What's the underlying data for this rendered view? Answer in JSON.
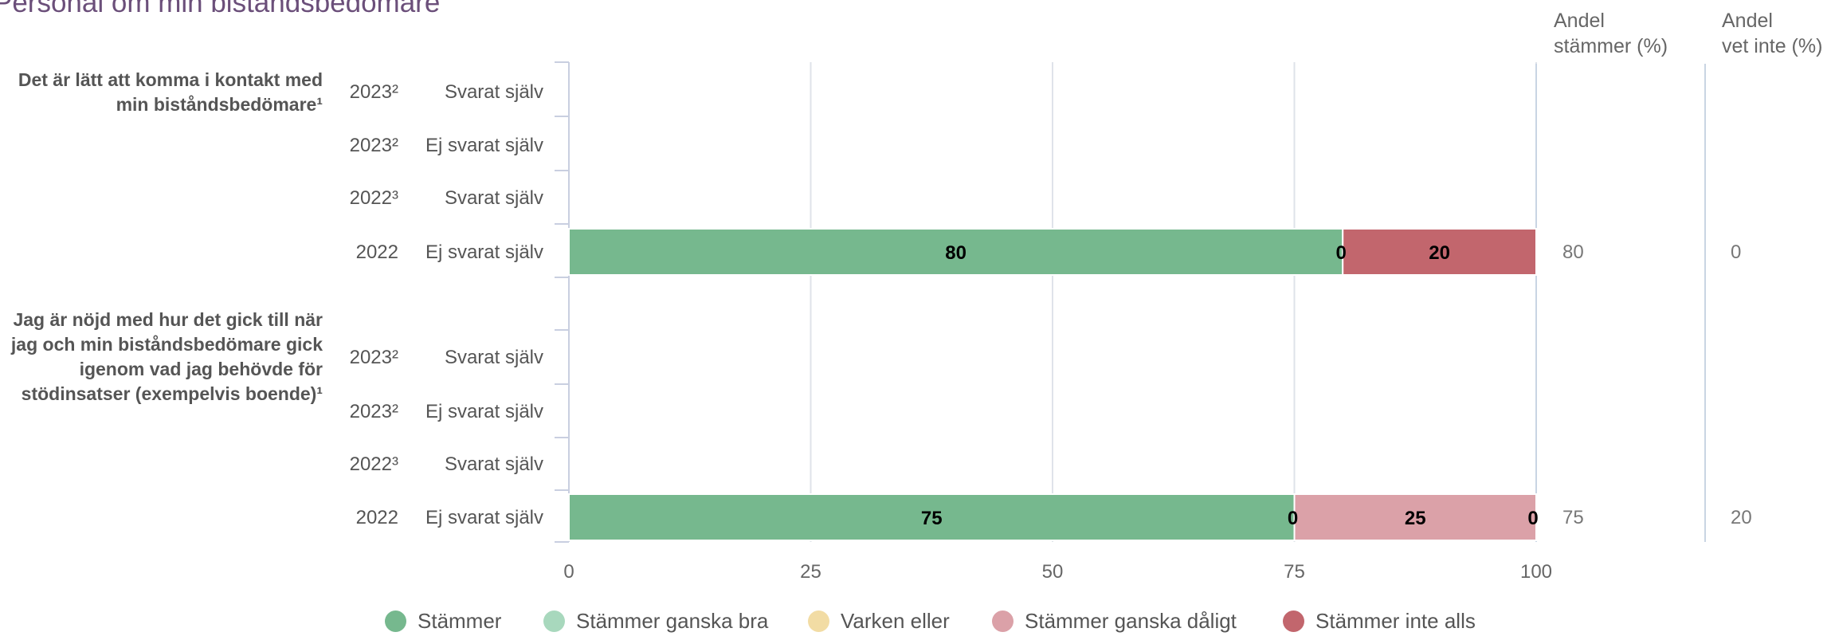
{
  "title": "Personal om min biståndsbedömare",
  "columns": {
    "andel_stammer": [
      "Andel",
      "stämmer (%)"
    ],
    "andel_vet_inte": [
      "Andel",
      "vet inte (%)"
    ]
  },
  "colors": {
    "Stämmer": "#76b88e",
    "Stämmer ganska bra": "#a8d8bd",
    "Varken eller": "#f2dca4",
    "Stämmer ganska dåligt": "#dba1a8",
    "Stämmer inte alls": "#c2666d"
  },
  "chart_data": {
    "type": "bar",
    "orientation": "horizontal",
    "stacked": true,
    "title": "Personal om min biståndsbedömare",
    "xlim": [
      0,
      100
    ],
    "xticks": [
      0,
      25,
      50,
      75,
      100
    ],
    "grid": true,
    "legend_position": "bottom",
    "legend": [
      "Stämmer",
      "Stämmer ganska bra",
      "Varken eller",
      "Stämmer ganska dåligt",
      "Stämmer inte alls"
    ],
    "groups": [
      {
        "question": "Det är lätt att komma i kontakt med min biståndsbedömare¹",
        "rows": [
          {
            "year": "2023²",
            "label": "Svarat själv",
            "values": null,
            "andel_stammer": "",
            "andel_vet_inte": ""
          },
          {
            "year": "2023²",
            "label": "Ej svarat själv",
            "values": null,
            "andel_stammer": "",
            "andel_vet_inte": ""
          },
          {
            "year": "2022³",
            "label": "Svarat själv",
            "values": null,
            "andel_stammer": "",
            "andel_vet_inte": ""
          },
          {
            "year": "2022",
            "label": "Ej svarat själv",
            "values": {
              "Stämmer": 80,
              "Stämmer ganska bra": 0,
              "Varken eller": 0,
              "Stämmer ganska dåligt": 0,
              "Stämmer inte alls": 20
            },
            "andel_stammer": "80",
            "andel_vet_inte": "0"
          }
        ]
      },
      {
        "question": "Jag är nöjd med hur det gick till när jag och min biståndsbedömare gick igenom vad jag behövde för stödinsatser (exempelvis boende)¹",
        "rows": [
          {
            "year": "2023²",
            "label": "Svarat själv",
            "values": null,
            "andel_stammer": "",
            "andel_vet_inte": ""
          },
          {
            "year": "2023²",
            "label": "Ej svarat själv",
            "values": null,
            "andel_stammer": "",
            "andel_vet_inte": ""
          },
          {
            "year": "2022³",
            "label": "Svarat själv",
            "values": null,
            "andel_stammer": "",
            "andel_vet_inte": ""
          },
          {
            "year": "2022",
            "label": "Ej svarat själv",
            "values": {
              "Stämmer": 75,
              "Stämmer ganska bra": 0,
              "Varken eller": 0,
              "Stämmer ganska dåligt": 25,
              "Stämmer inte alls": 0
            },
            "andel_stammer": "75",
            "andel_vet_inte": "20"
          }
        ]
      }
    ]
  }
}
